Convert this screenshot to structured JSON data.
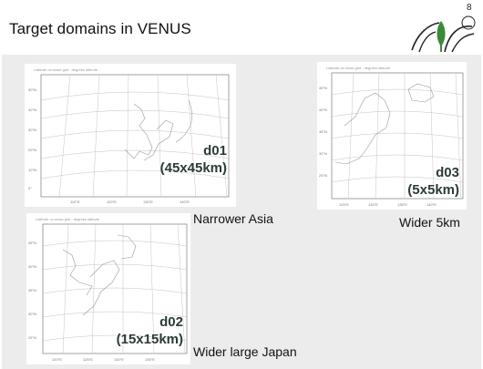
{
  "slide": {
    "title": "Target domains in VENUS",
    "page_number": "8",
    "logo_icon": "tree-logo-icon"
  },
  "maps": [
    {
      "name": "d01",
      "id_label": "d01",
      "resolution": "(45x45km)",
      "caption": "Narrower Asia",
      "map_title": "Latitude on mass grid : degrees latitude"
    },
    {
      "name": "d03",
      "id_label": "d03",
      "resolution": "(5x5km)",
      "caption": "Wider 5km",
      "map_title": "Latitude on mass grid : degrees latitude"
    },
    {
      "name": "d02",
      "id_label": "d02",
      "resolution": "(15x15km)",
      "caption": "Wider large Japan",
      "map_title": "Latitude on mass grid : degrees latitude"
    }
  ],
  "colors": {
    "panel_bg": "#ececec",
    "label_text": "#2b3d33",
    "logo_green": "#3a8a3a",
    "logo_outline": "#222222"
  }
}
